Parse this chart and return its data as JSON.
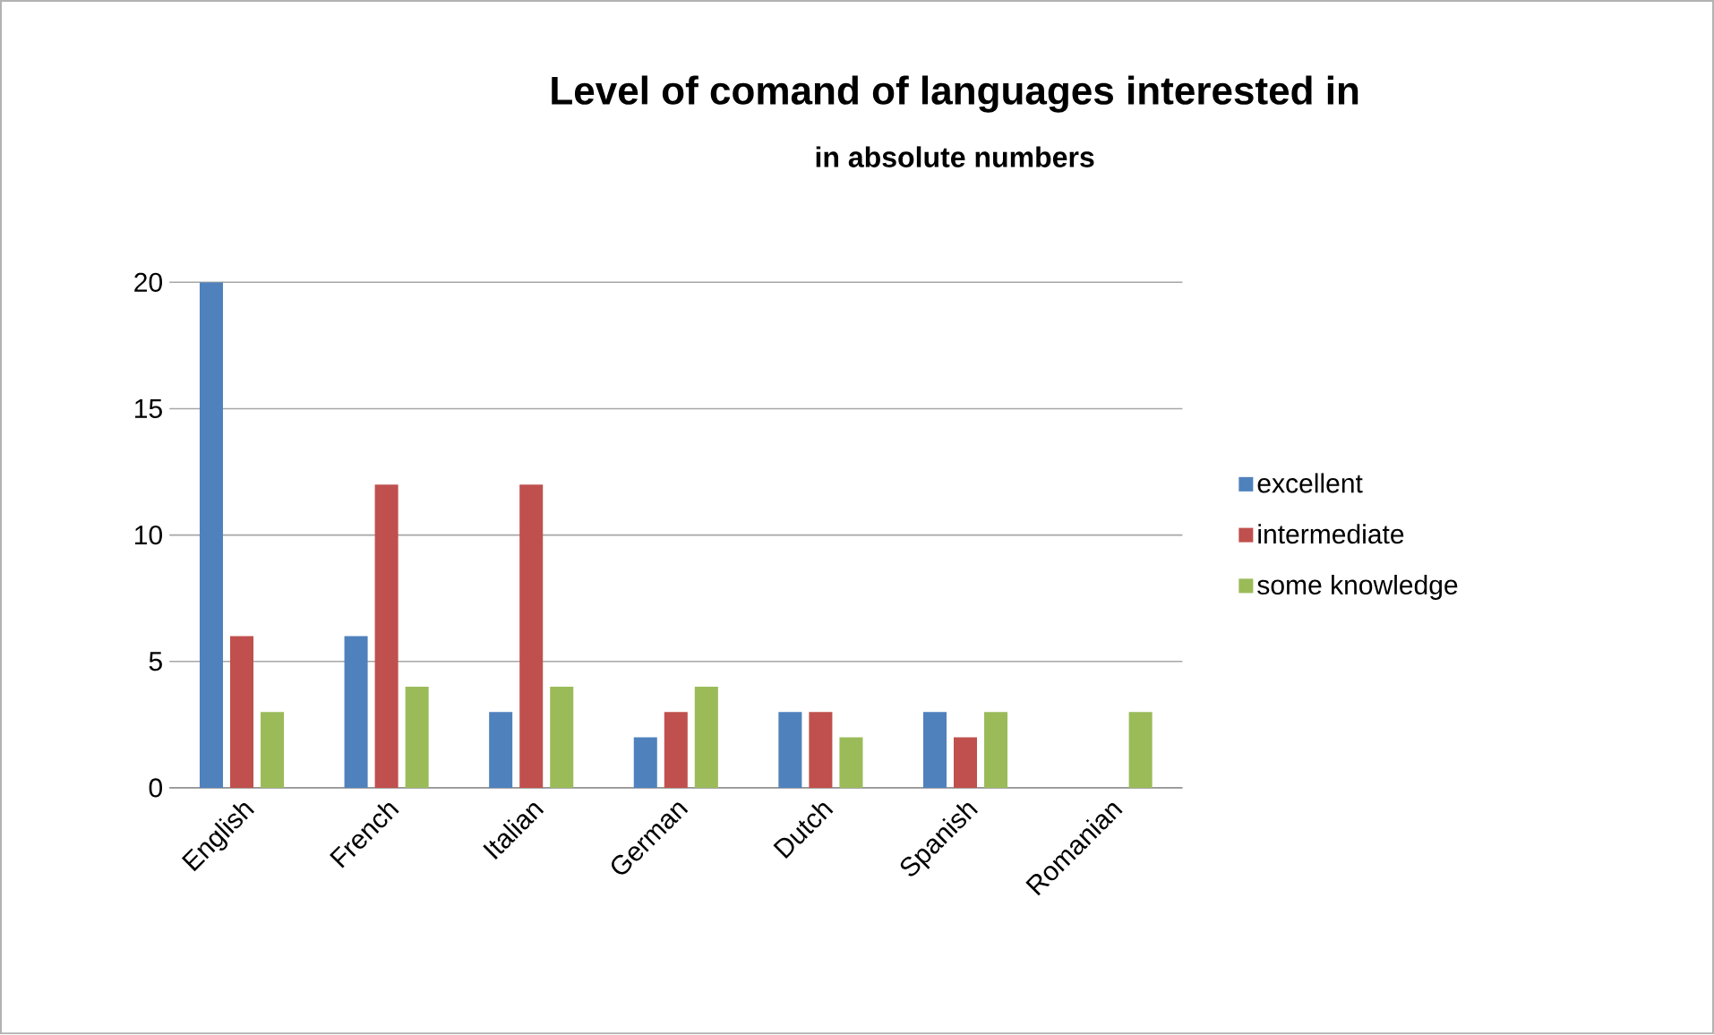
{
  "chart_data": {
    "type": "bar",
    "title": "Level of comand of languages interested in",
    "subtitle": "in absolute numbers",
    "categories": [
      "English",
      "French",
      "Italian",
      "German",
      "Dutch",
      "Spanish",
      "Romanian"
    ],
    "series": [
      {
        "name": "excellent",
        "color": "#4f81bd",
        "values": [
          20,
          6,
          3,
          2,
          3,
          3,
          null
        ]
      },
      {
        "name": "intermediate",
        "color": "#c0504d",
        "values": [
          6,
          12,
          12,
          3,
          3,
          2,
          null
        ]
      },
      {
        "name": "some knowledge",
        "color": "#9bbb59",
        "values": [
          3,
          4,
          4,
          4,
          2,
          3,
          3
        ]
      }
    ],
    "ylim": [
      0,
      20
    ],
    "yticks": [
      0,
      5,
      10,
      15,
      20
    ],
    "grid": "y",
    "legend": "right"
  }
}
